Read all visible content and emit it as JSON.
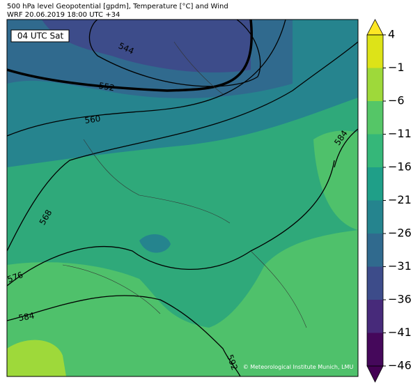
{
  "header": {
    "title": "500 hPa level Geopotential [gpdm], Temperature [°C] and Wind",
    "subtitle": "WRF 20.06.2019 18:00 UTC +34"
  },
  "panel_label": "04 UTC Sat",
  "contour_labels": [
    "544",
    "552",
    "560",
    "568",
    "576",
    "584",
    "584",
    "592"
  ],
  "credit": "© Meteorological Institute Munich, LMU",
  "colorbar": {
    "lim": [
      -46,
      4
    ],
    "ticks": [
      {
        "value": -46,
        "label": "−46"
      },
      {
        "value": -41,
        "label": "−41"
      },
      {
        "value": -36,
        "label": "−36"
      },
      {
        "value": -31,
        "label": "−31"
      },
      {
        "value": -26,
        "label": "−26"
      },
      {
        "value": -21,
        "label": "−21"
      },
      {
        "value": -16,
        "label": "−16"
      },
      {
        "value": -11,
        "label": "−11"
      },
      {
        "value": -6,
        "label": "−6"
      },
      {
        "value": -1,
        "label": "−1"
      },
      4
    ],
    "colors": [
      "#45085b",
      "#472a7a",
      "#3d4c8a",
      "#306a8e",
      "#25848e",
      "#1f9f88",
      "#35b779",
      "#55c667",
      "#9ed93a",
      "#dde318"
    ],
    "under_color": "#440154",
    "over_color": "#fde725"
  }
}
